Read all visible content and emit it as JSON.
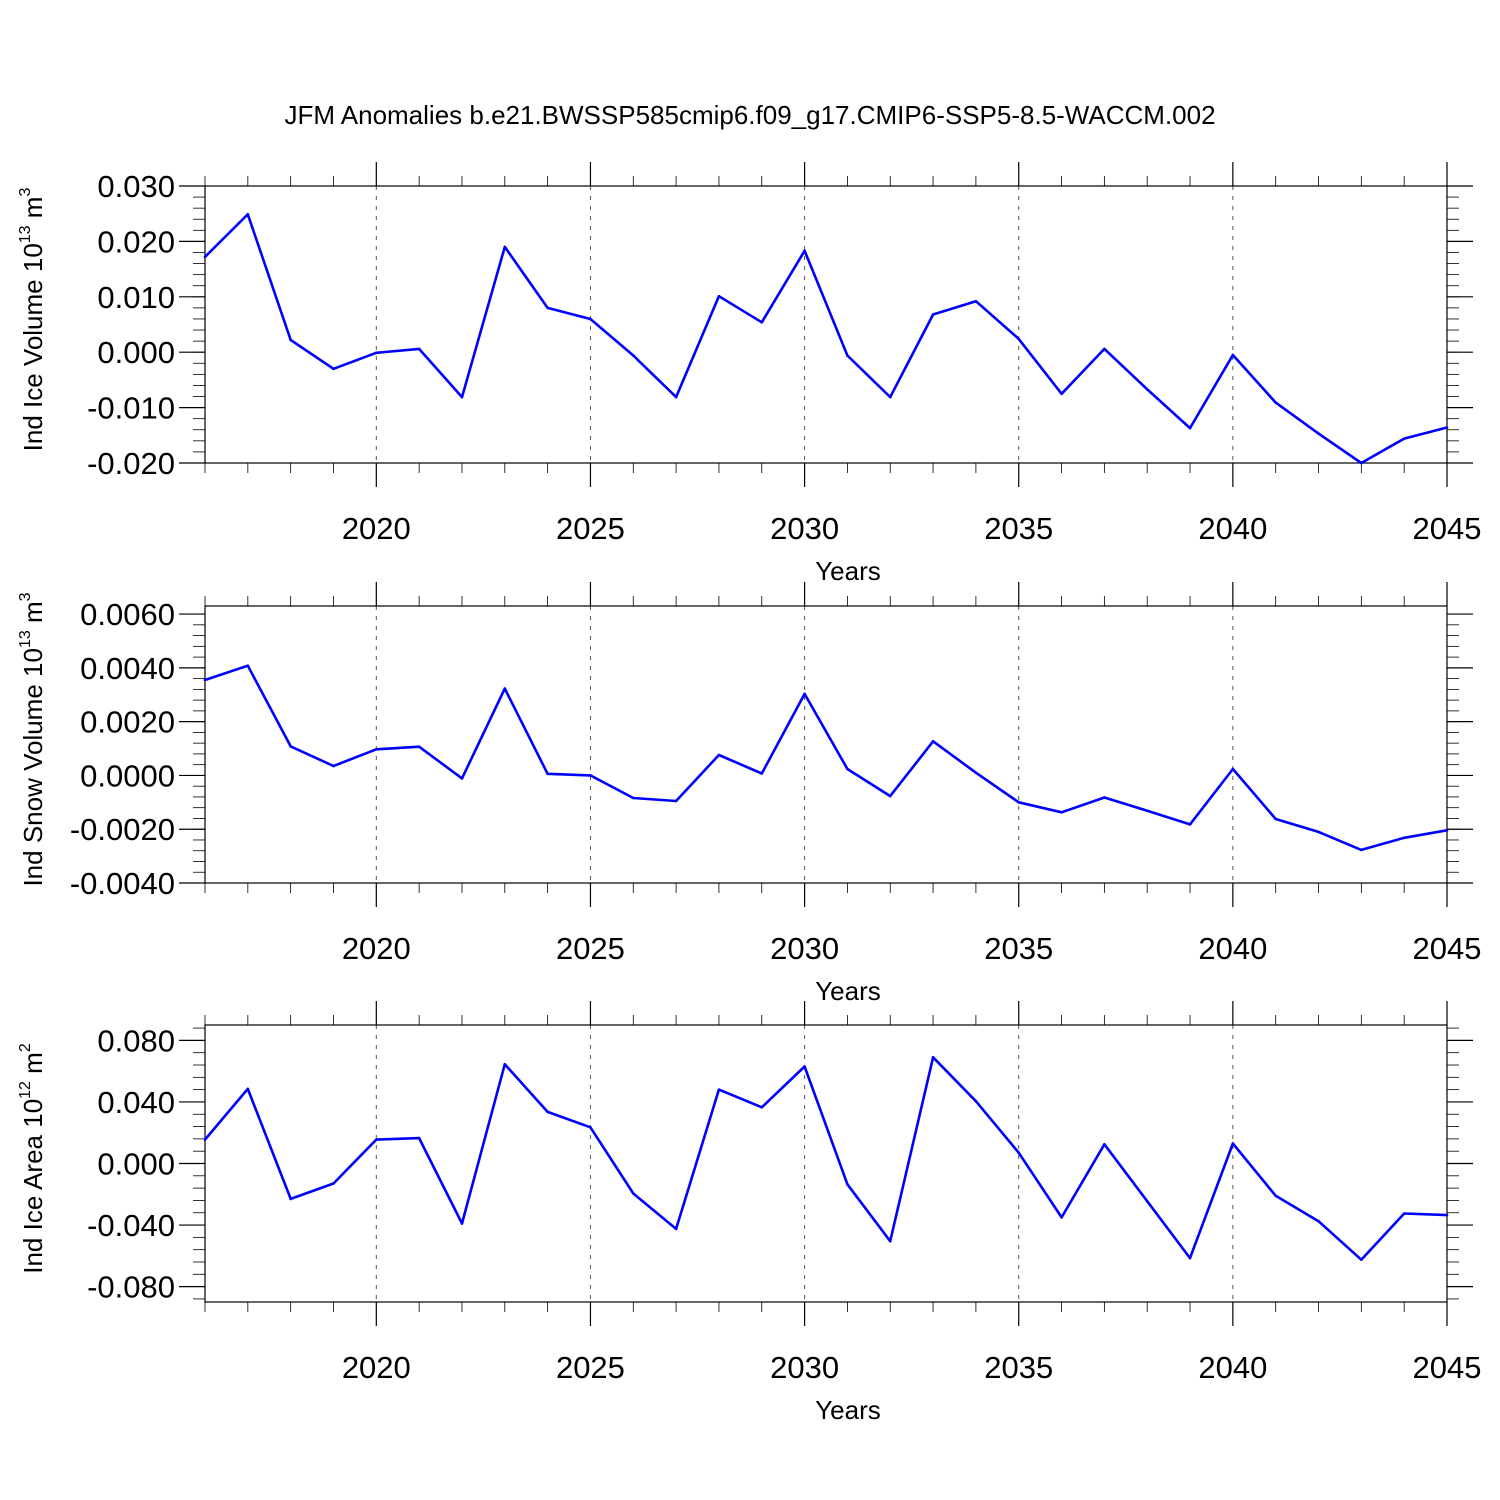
{
  "figure": {
    "title": "JFM Anomalies b.e21.BWSSP585cmip6.f09_g17.CMIP6-SSP5-8.5-WACCM.002"
  },
  "colors": {
    "series": "#0000ff",
    "axis": "#000000",
    "grid": "#555555"
  },
  "chart_data": [
    {
      "type": "line",
      "ylabel": "Ind Ice Volume 10",
      "ylabel_exp": "13",
      "ylabel_unit": " m",
      "ylabel_unit_exp": "3",
      "xlabel": "Years",
      "xlim": [
        2016,
        2045
      ],
      "ylim": [
        -0.02,
        0.03
      ],
      "yticks": [
        -0.02,
        -0.01,
        0.0,
        0.01,
        0.02,
        0.03
      ],
      "ytick_labels": [
        "-0.020",
        "-0.010",
        "0.000",
        "0.010",
        "0.020",
        "0.030"
      ],
      "xticks": [
        2020,
        2025,
        2030,
        2035,
        2040,
        2045
      ],
      "xtick_labels": [
        "2020",
        "2025",
        "2030",
        "2035",
        "2040",
        "2045"
      ],
      "grid": "vertical dashed at major x ticks",
      "x": [
        2016,
        2017,
        2018,
        2019,
        2020,
        2021,
        2022,
        2023,
        2024,
        2025,
        2026,
        2027,
        2028,
        2029,
        2030,
        2031,
        2032,
        2033,
        2034,
        2035,
        2036,
        2037,
        2038,
        2039,
        2040,
        2041,
        2042,
        2043,
        2044,
        2045
      ],
      "values": [
        0.0172,
        0.0249,
        0.0022,
        -0.003,
        -0.0001,
        0.0006,
        -0.0081,
        0.019,
        0.008,
        0.006,
        -0.0006,
        -0.0081,
        0.0101,
        0.0054,
        0.0183,
        -0.0006,
        -0.0081,
        0.0068,
        0.0092,
        0.0024,
        -0.0075,
        0.0006,
        -0.0067,
        -0.0137,
        -0.0005,
        -0.0091,
        -0.0147,
        -0.02,
        -0.0156,
        -0.0136
      ]
    },
    {
      "type": "line",
      "ylabel": "Ind Snow Volume 10",
      "ylabel_exp": "13",
      "ylabel_unit": " m",
      "ylabel_unit_exp": "3",
      "xlabel": "Years",
      "xlim": [
        2016,
        2045
      ],
      "ylim": [
        -0.004,
        0.0063
      ],
      "yticks": [
        -0.004,
        -0.002,
        0.0,
        0.002,
        0.004,
        0.006
      ],
      "ytick_labels": [
        "-0.0040",
        "-0.0020",
        "0.0000",
        "0.0020",
        "0.0040",
        "0.0060"
      ],
      "xticks": [
        2020,
        2025,
        2030,
        2035,
        2040,
        2045
      ],
      "xtick_labels": [
        "2020",
        "2025",
        "2030",
        "2035",
        "2040",
        "2045"
      ],
      "grid": "vertical dashed at major x ticks",
      "x": [
        2016,
        2017,
        2018,
        2019,
        2020,
        2021,
        2022,
        2023,
        2024,
        2025,
        2026,
        2027,
        2028,
        2029,
        2030,
        2031,
        2032,
        2033,
        2034,
        2035,
        2036,
        2037,
        2038,
        2039,
        2040,
        2041,
        2042,
        2043,
        2044,
        2045
      ],
      "values": [
        0.00355,
        0.00408,
        0.00108,
        0.00035,
        0.00097,
        0.00107,
        -0.00011,
        0.00323,
        6e-05,
        0.0,
        -0.00084,
        -0.00095,
        0.00076,
        7e-05,
        0.00303,
        0.00024,
        -0.00077,
        0.00127,
        0.0001,
        -0.001,
        -0.00137,
        -0.00082,
        -0.00131,
        -0.00182,
        0.00024,
        -0.00162,
        -0.0021,
        -0.00277,
        -0.00232,
        -0.00204
      ]
    },
    {
      "type": "line",
      "ylabel": "Ind Ice Area 10",
      "ylabel_exp": "12",
      "ylabel_unit": " m",
      "ylabel_unit_exp": "2",
      "xlabel": "Years",
      "xlim": [
        2016,
        2045
      ],
      "ylim": [
        -0.09,
        0.09
      ],
      "yticks": [
        -0.08,
        -0.04,
        0.0,
        0.04,
        0.08
      ],
      "ytick_labels": [
        "-0.080",
        "-0.040",
        "0.000",
        "0.040",
        "0.080"
      ],
      "xticks": [
        2020,
        2025,
        2030,
        2035,
        2040,
        2045
      ],
      "xtick_labels": [
        "2020",
        "2025",
        "2030",
        "2035",
        "2040",
        "2045"
      ],
      "grid": "vertical dashed at major x ticks",
      "x": [
        2016,
        2017,
        2018,
        2019,
        2020,
        2021,
        2022,
        2023,
        2024,
        2025,
        2026,
        2027,
        2028,
        2029,
        2030,
        2031,
        2032,
        2033,
        2034,
        2035,
        2036,
        2037,
        2038,
        2039,
        2040,
        2041,
        2042,
        2043,
        2044,
        2045
      ],
      "values": [
        0.0155,
        0.0485,
        -0.023,
        -0.013,
        0.0155,
        0.0165,
        -0.039,
        0.0645,
        0.0335,
        0.0235,
        -0.0195,
        -0.0425,
        0.048,
        0.0365,
        0.063,
        -0.0135,
        -0.0505,
        0.069,
        0.0405,
        0.007,
        -0.035,
        0.0125,
        -0.0245,
        -0.0615,
        0.013,
        -0.021,
        -0.0375,
        -0.0625,
        -0.0325,
        -0.0335
      ]
    }
  ]
}
